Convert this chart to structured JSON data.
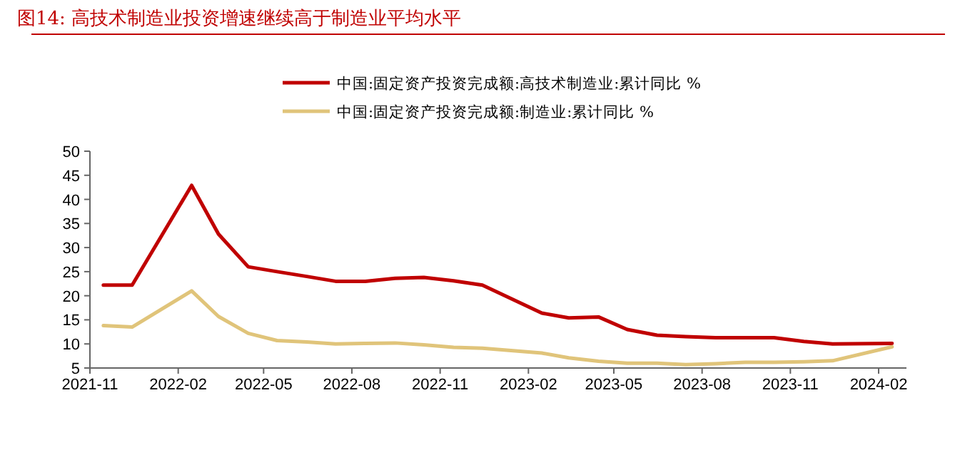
{
  "chart_data": {
    "type": "line",
    "title": "图14:   高技术制造业投资增速继续高于制造业平均水平",
    "x": [
      "2021-11-15",
      "2021-12-15",
      "2022-02-15",
      "2022-03-15",
      "2022-04-15",
      "2022-05-15",
      "2022-06-15",
      "2022-07-15",
      "2022-08-15",
      "2022-09-15",
      "2022-10-15",
      "2022-11-15",
      "2022-12-15",
      "2023-02-15",
      "2023-03-15",
      "2023-04-15",
      "2023-05-15",
      "2023-06-15",
      "2023-07-15",
      "2023-08-15",
      "2023-09-15",
      "2023-10-15",
      "2023-11-15",
      "2023-12-15",
      "2024-02-15"
    ],
    "series": [
      {
        "name": "中国:固定资产投资完成额:高技术制造业:累计同比 %",
        "color": "#c00000",
        "values": [
          22.2,
          22.2,
          42.9,
          32.8,
          26.0,
          25.0,
          24.0,
          23.0,
          23.0,
          23.6,
          23.8,
          23.1,
          22.2,
          16.4,
          15.4,
          15.6,
          13.0,
          11.8,
          11.5,
          11.3,
          11.3,
          11.3,
          10.5,
          10.0,
          10.1
        ]
      },
      {
        "name": "中国:固定资产投资完成额:制造业:累计同比 %",
        "color": "#e0c47a",
        "values": [
          13.8,
          13.5,
          21.0,
          15.7,
          12.2,
          10.7,
          10.4,
          10.0,
          10.1,
          10.2,
          9.8,
          9.3,
          9.1,
          8.1,
          7.1,
          6.4,
          6.0,
          6.0,
          5.7,
          5.9,
          6.2,
          6.2,
          6.3,
          6.5,
          9.4
        ]
      }
    ],
    "xlim": [
      "2021-11-01",
      "2024-03-01"
    ],
    "xticks": [
      {
        "value": "2021-11-01",
        "label": "2021-11"
      },
      {
        "value": "2022-02-01",
        "label": "2022-02"
      },
      {
        "value": "2022-05-01",
        "label": "2022-05"
      },
      {
        "value": "2022-08-01",
        "label": "2022-08"
      },
      {
        "value": "2022-11-01",
        "label": "2022-11"
      },
      {
        "value": "2023-02-01",
        "label": "2023-02"
      },
      {
        "value": "2023-05-01",
        "label": "2023-05"
      },
      {
        "value": "2023-08-01",
        "label": "2023-08"
      },
      {
        "value": "2023-11-01",
        "label": "2023-11"
      },
      {
        "value": "2024-02-01",
        "label": "2024-02"
      }
    ],
    "ylim": [
      5,
      50
    ],
    "yticks": [
      5,
      10,
      15,
      20,
      25,
      30,
      35,
      40,
      45,
      50
    ],
    "grid": false,
    "legend": "top",
    "marker": "none",
    "line_style": "solid"
  }
}
